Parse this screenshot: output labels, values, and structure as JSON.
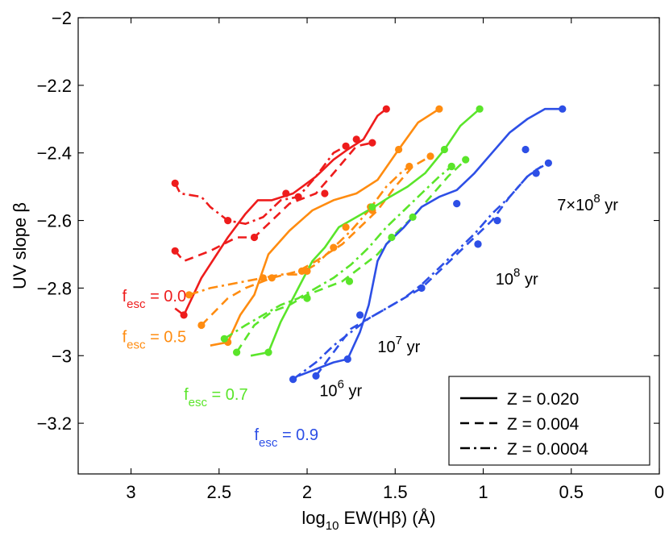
{
  "chart_data": {
    "type": "line",
    "title": "",
    "xlabel": {
      "pre": "log",
      "sub": "10",
      "post": " EW(Hβ) (Å)"
    },
    "ylabel": "UV slope β",
    "xlim": [
      3.3,
      0
    ],
    "x_reversed": true,
    "ylim": [
      -3.35,
      -2.0
    ],
    "xticks": [
      3,
      2.5,
      2,
      1.5,
      1,
      0.5,
      0
    ],
    "xtick_labels": [
      "3",
      "2.5",
      "2",
      "1.5",
      "1",
      "0.5",
      "0"
    ],
    "yticks": [
      -2,
      -2.2,
      -2.4,
      -2.6,
      -2.8,
      -3,
      -3.2
    ],
    "ytick_labels": [
      "−2",
      "−2.2",
      "−2.4",
      "−2.6",
      "−2.8",
      "−3",
      "−3.2"
    ],
    "grid": false,
    "legend_position": "bottom-right",
    "legend": [
      {
        "label": "Z = 0.020",
        "style": "solid"
      },
      {
        "label": "Z = 0.004",
        "style": "dashed"
      },
      {
        "label": "Z = 0.0004",
        "style": "dashdot"
      }
    ],
    "colors": {
      "red": "#ee1c1c",
      "orange": "#ff8c10",
      "green": "#5ae52a",
      "blue": "#2d4fe6"
    },
    "series": [
      {
        "fesc": "0.0",
        "Z": "0.020",
        "style": "solid",
        "color": "#ee1c1c",
        "x": [
          2.75,
          2.7,
          2.6,
          2.45,
          2.35,
          2.28,
          2.2,
          2.08,
          1.95,
          1.85,
          1.77,
          1.68,
          1.6,
          1.55
        ],
        "y": [
          -2.86,
          -2.88,
          -2.77,
          -2.65,
          -2.58,
          -2.54,
          -2.54,
          -2.52,
          -2.47,
          -2.42,
          -2.39,
          -2.36,
          -2.29,
          -2.27
        ],
        "markers": [
          [
            2.7,
            -2.88
          ],
          [
            1.55,
            -2.27
          ]
        ]
      },
      {
        "fesc": "0.0",
        "Z": "0.004",
        "style": "dashed",
        "color": "#ee1c1c",
        "x": [
          2.75,
          2.7,
          2.55,
          2.4,
          2.3,
          2.2,
          2.1,
          1.95,
          1.85,
          1.72,
          1.63
        ],
        "y": [
          -2.69,
          -2.72,
          -2.69,
          -2.65,
          -2.65,
          -2.6,
          -2.55,
          -2.52,
          -2.46,
          -2.38,
          -2.37
        ],
        "markers": [
          [
            2.75,
            -2.69
          ],
          [
            2.3,
            -2.65
          ],
          [
            1.9,
            -2.52
          ],
          [
            1.72,
            -2.36
          ],
          [
            1.63,
            -2.37
          ]
        ]
      },
      {
        "fesc": "0.0",
        "Z": "0.0004",
        "style": "dashdot",
        "color": "#ee1c1c",
        "x": [
          2.75,
          2.72,
          2.6,
          2.55,
          2.5,
          2.45,
          2.35,
          2.25,
          2.15,
          2.05,
          1.95,
          1.85,
          1.78
        ],
        "y": [
          -2.49,
          -2.52,
          -2.53,
          -2.56,
          -2.58,
          -2.6,
          -2.61,
          -2.59,
          -2.54,
          -2.53,
          -2.47,
          -2.4,
          -2.38
        ],
        "markers": [
          [
            2.75,
            -2.49
          ],
          [
            2.45,
            -2.6
          ],
          [
            2.12,
            -2.52
          ],
          [
            2.05,
            -2.53
          ],
          [
            1.78,
            -2.38
          ]
        ]
      },
      {
        "fesc": "0.5",
        "Z": "0.020",
        "style": "solid",
        "color": "#ff8c10",
        "x": [
          2.55,
          2.45,
          2.38,
          2.3,
          2.22,
          2.1,
          1.97,
          1.85,
          1.72,
          1.6,
          1.48,
          1.37,
          1.25
        ],
        "y": [
          -2.97,
          -2.96,
          -2.88,
          -2.82,
          -2.7,
          -2.63,
          -2.57,
          -2.54,
          -2.52,
          -2.48,
          -2.39,
          -2.31,
          -2.27
        ],
        "markers": [
          [
            2.45,
            -2.96
          ],
          [
            1.48,
            -2.39
          ],
          [
            1.25,
            -2.27
          ]
        ]
      },
      {
        "fesc": "0.5",
        "Z": "0.004",
        "style": "dashed",
        "color": "#ff8c10",
        "x": [
          2.6,
          2.45,
          2.35,
          2.2,
          2.05,
          1.95,
          1.8,
          1.7,
          1.6,
          1.5,
          1.4,
          1.3
        ],
        "y": [
          -2.91,
          -2.83,
          -2.8,
          -2.77,
          -2.75,
          -2.72,
          -2.67,
          -2.62,
          -2.57,
          -2.5,
          -2.44,
          -2.41
        ],
        "markers": [
          [
            2.6,
            -2.91
          ],
          [
            2.2,
            -2.77
          ],
          [
            2.0,
            -2.75
          ],
          [
            1.78,
            -2.62
          ],
          [
            1.63,
            -2.57
          ],
          [
            1.3,
            -2.41
          ]
        ]
      },
      {
        "fesc": "0.5",
        "Z": "0.0004",
        "style": "dashdot",
        "color": "#ff8c10",
        "x": [
          2.67,
          2.55,
          2.45,
          2.35,
          2.25,
          2.15,
          2.05,
          1.95,
          1.85,
          1.75,
          1.65,
          1.55,
          1.47,
          1.42
        ],
        "y": [
          -2.82,
          -2.8,
          -2.79,
          -2.78,
          -2.77,
          -2.76,
          -2.76,
          -2.73,
          -2.68,
          -2.63,
          -2.57,
          -2.5,
          -2.46,
          -2.44
        ],
        "markers": [
          [
            2.67,
            -2.82
          ],
          [
            2.25,
            -2.77
          ],
          [
            2.03,
            -2.75
          ],
          [
            1.85,
            -2.68
          ],
          [
            1.64,
            -2.56
          ],
          [
            1.42,
            -2.44
          ]
        ]
      },
      {
        "fesc": "0.7",
        "Z": "0.020",
        "style": "solid",
        "color": "#5ae52a",
        "x": [
          2.32,
          2.22,
          2.15,
          2.05,
          1.97,
          1.9,
          1.82,
          1.72,
          1.62,
          1.53,
          1.43,
          1.33,
          1.22,
          1.13,
          1.02
        ],
        "y": [
          -3.0,
          -2.99,
          -2.9,
          -2.8,
          -2.72,
          -2.68,
          -2.62,
          -2.59,
          -2.56,
          -2.53,
          -2.5,
          -2.46,
          -2.39,
          -2.32,
          -2.27
        ],
        "markers": [
          [
            2.22,
            -2.99
          ],
          [
            1.22,
            -2.39
          ],
          [
            1.02,
            -2.27
          ]
        ]
      },
      {
        "fesc": "0.7",
        "Z": "0.004",
        "style": "dashed",
        "color": "#5ae52a",
        "x": [
          2.4,
          2.3,
          2.2,
          2.1,
          2.0,
          1.9,
          1.8,
          1.7,
          1.6,
          1.5,
          1.4,
          1.3,
          1.2,
          1.1
        ],
        "y": [
          -2.99,
          -2.91,
          -2.87,
          -2.85,
          -2.82,
          -2.8,
          -2.78,
          -2.74,
          -2.7,
          -2.64,
          -2.59,
          -2.53,
          -2.47,
          -2.42
        ],
        "markers": [
          [
            2.4,
            -2.99
          ],
          [
            2.0,
            -2.83
          ],
          [
            1.76,
            -2.78
          ],
          [
            1.4,
            -2.59
          ],
          [
            1.18,
            -2.44
          ],
          [
            1.1,
            -2.42
          ]
        ]
      },
      {
        "fesc": "0.7",
        "Z": "0.0004",
        "style": "dashdot",
        "color": "#5ae52a",
        "x": [
          2.47,
          2.35,
          2.25,
          2.15,
          2.05,
          1.95,
          1.85,
          1.75,
          1.65,
          1.55,
          1.45,
          1.35,
          1.25,
          1.18
        ],
        "y": [
          -2.95,
          -2.91,
          -2.88,
          -2.85,
          -2.83,
          -2.8,
          -2.77,
          -2.73,
          -2.68,
          -2.62,
          -2.57,
          -2.52,
          -2.47,
          -2.44
        ],
        "markers": [
          [
            2.47,
            -2.95
          ],
          [
            2.0,
            -2.83
          ],
          [
            1.63,
            -2.56
          ],
          [
            1.52,
            -2.65
          ],
          [
            1.18,
            -2.44
          ]
        ]
      },
      {
        "fesc": "0.9",
        "Z": "0.020",
        "style": "solid",
        "color": "#2d4fe6",
        "x": [
          2.05,
          1.95,
          1.85,
          1.77,
          1.7,
          1.65,
          1.6,
          1.55,
          1.45,
          1.35,
          1.25,
          1.15,
          1.05,
          0.95,
          0.85,
          0.75,
          0.65,
          0.55
        ],
        "y": [
          -3.06,
          -3.04,
          -3.02,
          -3.01,
          -2.93,
          -2.85,
          -2.72,
          -2.67,
          -2.62,
          -2.56,
          -2.53,
          -2.51,
          -2.46,
          -2.4,
          -2.34,
          -2.3,
          -2.27,
          -2.27
        ],
        "markers": [
          [
            1.77,
            -3.01
          ],
          [
            1.15,
            -2.55
          ],
          [
            0.76,
            -2.39
          ],
          [
            0.55,
            -2.27
          ]
        ]
      },
      {
        "fesc": "0.9",
        "Z": "0.004",
        "style": "dashed",
        "color": "#2d4fe6",
        "x": [
          1.95,
          1.85,
          1.75,
          1.65,
          1.55,
          1.45,
          1.35,
          1.25,
          1.15,
          1.05,
          0.95,
          0.85,
          0.75,
          0.7,
          0.63
        ],
        "y": [
          -3.06,
          -2.99,
          -2.92,
          -2.89,
          -2.86,
          -2.83,
          -2.8,
          -2.75,
          -2.7,
          -2.65,
          -2.6,
          -2.53,
          -2.47,
          -2.45,
          -2.43
        ],
        "markers": [
          [
            1.95,
            -3.06
          ],
          [
            1.7,
            -2.88
          ],
          [
            1.35,
            -2.8
          ],
          [
            1.03,
            -2.67
          ],
          [
            0.92,
            -2.6
          ],
          [
            0.7,
            -2.46
          ],
          [
            0.63,
            -2.43
          ]
        ]
      },
      {
        "fesc": "0.9",
        "Z": "0.0004",
        "style": "dashdot",
        "color": "#2d4fe6",
        "x": [
          2.08,
          1.95,
          1.85,
          1.75,
          1.65,
          1.55,
          1.45,
          1.35,
          1.25,
          1.15,
          1.05,
          0.95,
          0.85,
          0.75,
          0.67
        ],
        "y": [
          -3.07,
          -3.02,
          -2.97,
          -2.93,
          -2.89,
          -2.86,
          -2.83,
          -2.79,
          -2.74,
          -2.69,
          -2.64,
          -2.58,
          -2.53,
          -2.47,
          -2.44
        ],
        "markers": [
          [
            2.08,
            -3.07
          ],
          [
            1.35,
            -2.8
          ],
          [
            1.03,
            -2.67
          ],
          [
            0.7,
            -2.46
          ]
        ]
      }
    ],
    "annotations": [
      {
        "type": "fesc",
        "base": "f",
        "sub": "esc",
        "text": " = 0.0",
        "color": "#ee1c1c",
        "x": 3.05,
        "y": -2.84
      },
      {
        "type": "fesc",
        "base": "f",
        "sub": "esc",
        "text": " = 0.5",
        "color": "#ff8c10",
        "x": 3.05,
        "y": -2.96
      },
      {
        "type": "fesc",
        "base": "f",
        "sub": "esc",
        "text": " = 0.7",
        "color": "#5ae52a",
        "x": 2.7,
        "y": -3.13
      },
      {
        "type": "fesc",
        "base": "f",
        "sub": "esc",
        "text": " = 0.9",
        "color": "#2d4fe6",
        "x": 2.3,
        "y": -3.25
      },
      {
        "type": "age",
        "base": "10",
        "sup": "6",
        "text": " yr",
        "color": "#000000",
        "x": 1.93,
        "y": -3.12
      },
      {
        "type": "age",
        "base": "10",
        "sup": "7",
        "text": " yr",
        "color": "#000000",
        "x": 1.6,
        "y": -2.99
      },
      {
        "type": "age",
        "base": "10",
        "sup": "8",
        "text": " yr",
        "color": "#000000",
        "x": 0.93,
        "y": -2.79
      },
      {
        "type": "age",
        "base": "7×10",
        "sup": "8",
        "text": " yr",
        "color": "#000000",
        "x": 0.58,
        "y": -2.57
      }
    ]
  }
}
